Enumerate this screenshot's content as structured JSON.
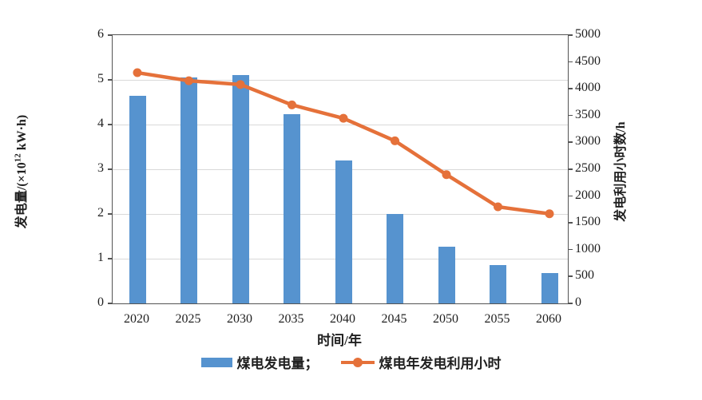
{
  "chart_data": {
    "type": "combo-bar-line",
    "title": "",
    "categories": [
      "2020",
      "2025",
      "2030",
      "2035",
      "2040",
      "2045",
      "2050",
      "2055",
      "2060"
    ],
    "series": [
      {
        "name": "煤电发电量",
        "type": "bar",
        "axis": "left",
        "color": "#5693cf",
        "values": [
          4.64,
          5.06,
          5.1,
          4.23,
          3.19,
          2.0,
          1.26,
          0.85,
          0.68
        ]
      },
      {
        "name": "煤电年发电利用小时",
        "type": "line",
        "axis": "right",
        "color": "#e5713a",
        "values": [
          4300,
          4150,
          4080,
          3700,
          3450,
          3030,
          2400,
          1800,
          1670
        ]
      }
    ],
    "xlabel": "时间/年",
    "left_axis": {
      "label_prefix": "发电量/(×10",
      "label_sup": "12",
      "label_suffix": " kW·h)",
      "min": 0,
      "max": 6,
      "ticks": [
        0,
        1,
        2,
        3,
        4,
        5,
        6
      ]
    },
    "right_axis": {
      "label": "发电利用小时数/h",
      "min": 0,
      "max": 5000,
      "ticks": [
        0,
        500,
        1000,
        1500,
        2000,
        2500,
        3000,
        3500,
        4000,
        4500,
        5000
      ]
    },
    "legend": [
      {
        "label": "煤电发电量；",
        "marker": "bar-swatch"
      },
      {
        "label": "煤电年发电利用小时",
        "marker": "line-dot"
      }
    ],
    "grid": true,
    "legend_position": "bottom-center"
  },
  "colors": {
    "bar_blue": "#5693cf",
    "line_orange": "#e5713a",
    "axis_border": "#545454",
    "gridline": "#d9d9d9",
    "text": "#1f1f1f",
    "background": "#ffffff"
  }
}
